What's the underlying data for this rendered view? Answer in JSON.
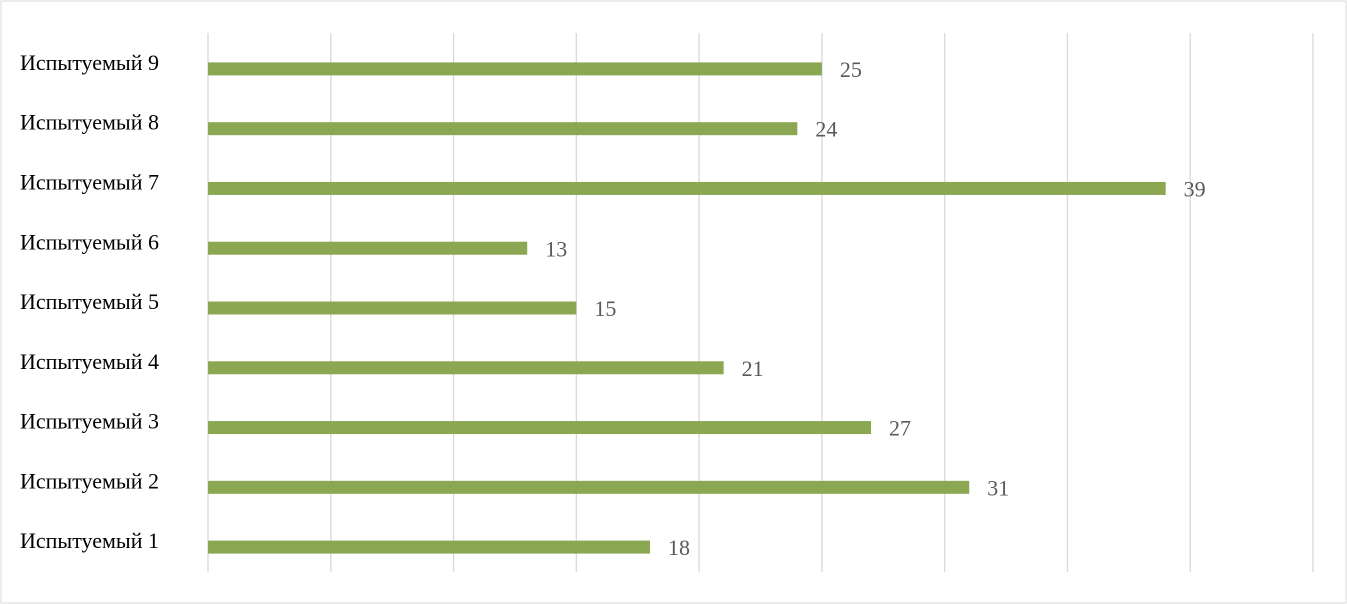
{
  "chart_data": {
    "type": "barh",
    "categories": [
      "Испытуемый 1",
      "Испытуемый 2",
      "Испытуемый 3",
      "Испытуемый 4",
      "Испытуемый 5",
      "Испытуемый 6",
      "Испытуемый 7",
      "Испытуемый 8",
      "Испытуемый 9"
    ],
    "values": [
      18,
      31,
      27,
      21,
      15,
      13,
      39,
      24,
      25
    ],
    "color": "#8ba752",
    "xlim": [
      0,
      45
    ],
    "xticks": [
      0,
      5,
      10,
      15,
      20,
      25,
      30,
      35,
      40,
      45
    ],
    "grid": true
  }
}
